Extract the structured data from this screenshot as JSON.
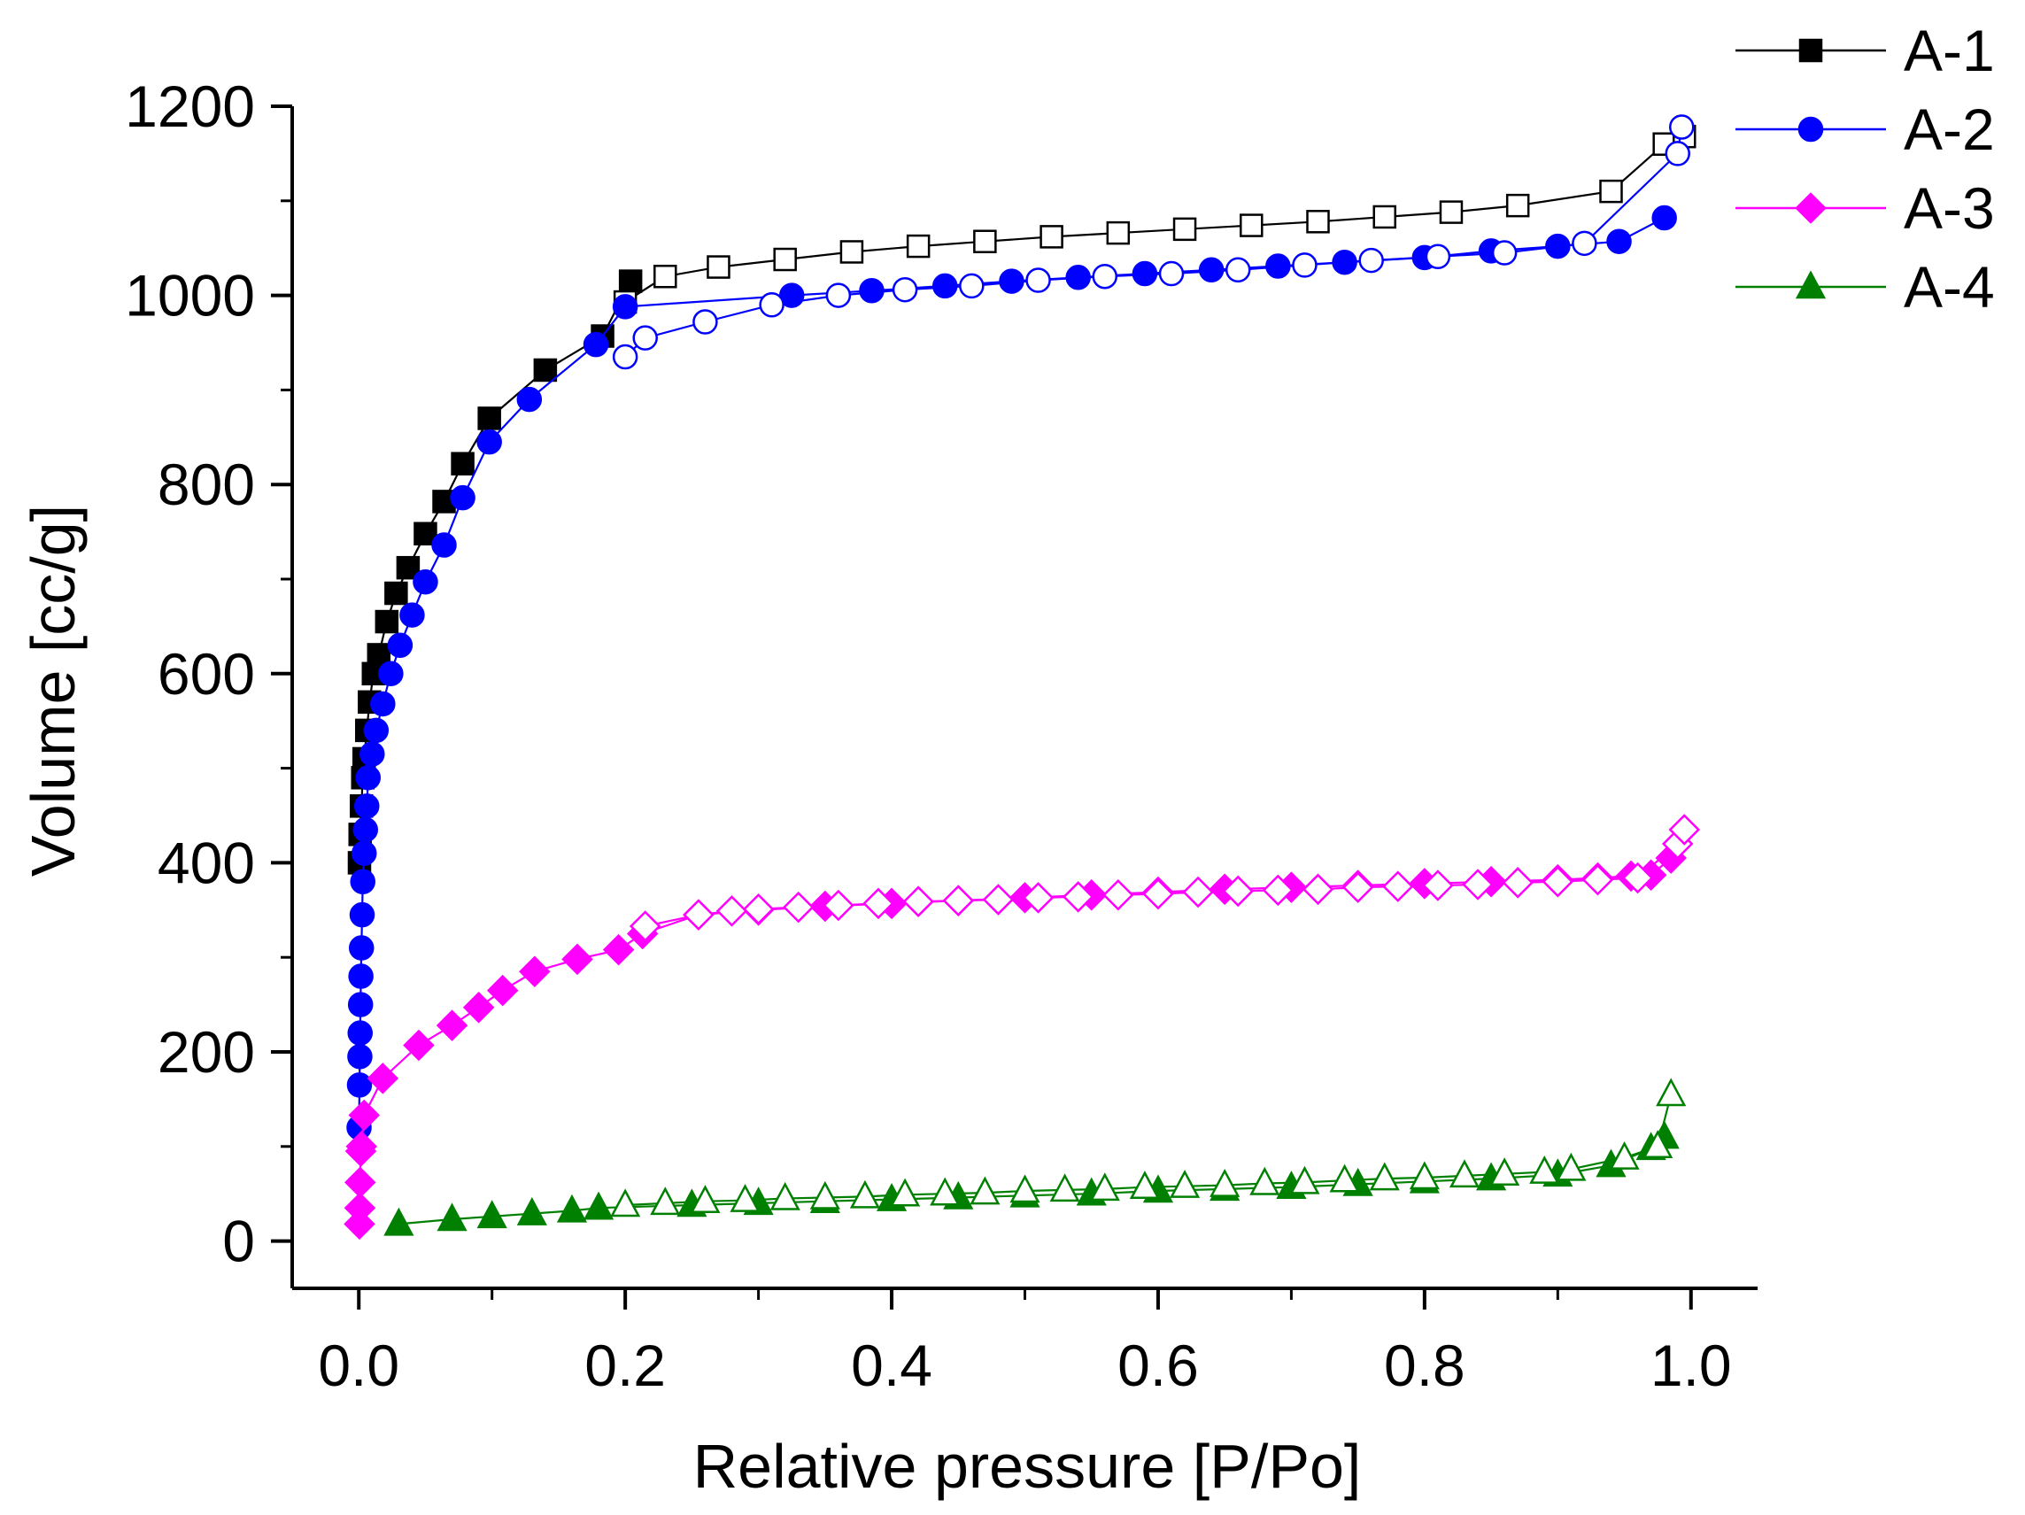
{
  "chart_data": {
    "type": "line",
    "title": "",
    "xlabel": "Relative pressure [P/Po]",
    "ylabel": "Volume [cc/g]",
    "xlim": [
      -0.05,
      1.05
    ],
    "ylim": [
      -50,
      1200
    ],
    "x_ticks": [
      0.0,
      0.2,
      0.4,
      0.6,
      0.8,
      1.0
    ],
    "x_tick_labels": [
      "0.0",
      "0.2",
      "0.4",
      "0.6",
      "0.8",
      "1.0"
    ],
    "y_ticks": [
      0,
      200,
      400,
      600,
      800,
      1000,
      1200
    ],
    "y_tick_labels": [
      "0",
      "200",
      "400",
      "600",
      "800",
      "1000",
      "1200"
    ],
    "grid": false,
    "legend_position": "top-right, outside plot",
    "series": [
      {
        "name": "A-1",
        "color": "#000000",
        "marker": "square",
        "adsorption": {
          "x": [
            0.0005,
            0.001,
            0.002,
            0.003,
            0.004,
            0.006,
            0.008,
            0.011,
            0.015,
            0.021,
            0.028,
            0.037,
            0.05,
            0.064,
            0.078,
            0.098,
            0.14,
            0.183,
            0.204
          ],
          "y": [
            400,
            430,
            460,
            490,
            510,
            540,
            570,
            600,
            620,
            655,
            685,
            712,
            748,
            782,
            822,
            870,
            921,
            957,
            1015
          ]
        },
        "desorption": {
          "x": [
            0.2,
            0.23,
            0.27,
            0.32,
            0.37,
            0.42,
            0.47,
            0.52,
            0.57,
            0.62,
            0.67,
            0.72,
            0.77,
            0.82,
            0.87,
            0.94,
            0.98,
            0.995
          ],
          "y": [
            993,
            1020,
            1030,
            1038,
            1046,
            1052,
            1057,
            1062,
            1066,
            1070,
            1074,
            1078,
            1083,
            1088,
            1095,
            1110,
            1160,
            1168
          ]
        }
      },
      {
        "name": "A-2",
        "color": "#0000ff",
        "marker": "circle",
        "adsorption": {
          "x": [
            0.0002,
            0.0005,
            0.0008,
            0.001,
            0.0013,
            0.0016,
            0.002,
            0.0025,
            0.003,
            0.004,
            0.005,
            0.006,
            0.007,
            0.01,
            0.013,
            0.018,
            0.024,
            0.031,
            0.04,
            0.05,
            0.064,
            0.078,
            0.098,
            0.128,
            0.178,
            0.2,
            0.325,
            0.385,
            0.44,
            0.49,
            0.54,
            0.59,
            0.64,
            0.69,
            0.74,
            0.8,
            0.85,
            0.9,
            0.946,
            0.98
          ],
          "y": [
            120,
            165,
            195,
            220,
            250,
            280,
            310,
            345,
            380,
            410,
            435,
            460,
            490,
            515,
            540,
            568,
            600,
            630,
            662,
            697,
            736,
            786,
            845,
            890,
            948,
            988,
            1000,
            1005,
            1010,
            1015,
            1019,
            1023,
            1027,
            1031,
            1035,
            1040,
            1047,
            1052,
            1057,
            1082
          ]
        },
        "desorption": {
          "x": [
            0.2,
            0.215,
            0.26,
            0.31,
            0.36,
            0.41,
            0.46,
            0.51,
            0.56,
            0.61,
            0.66,
            0.71,
            0.76,
            0.81,
            0.86,
            0.92,
            0.99,
            0.993
          ],
          "y": [
            935,
            955,
            972,
            990,
            1000,
            1006,
            1010,
            1016,
            1020,
            1023,
            1027,
            1032,
            1037,
            1041,
            1045,
            1055,
            1150,
            1178
          ]
        }
      },
      {
        "name": "A-3",
        "color": "#ff00ff",
        "marker": "diamond",
        "adsorption": {
          "x": [
            0.0005,
            0.0008,
            0.001,
            0.0015,
            0.002,
            0.004,
            0.018,
            0.045,
            0.07,
            0.09,
            0.108,
            0.132,
            0.164,
            0.195,
            0.213,
            0.255,
            0.3,
            0.35,
            0.4,
            0.45,
            0.5,
            0.55,
            0.6,
            0.65,
            0.7,
            0.75,
            0.8,
            0.85,
            0.9,
            0.93,
            0.955,
            0.97,
            0.985
          ],
          "y": [
            18,
            35,
            62,
            95,
            100,
            133,
            172,
            207,
            228,
            247,
            265,
            285,
            298,
            308,
            325,
            345,
            350,
            354,
            357,
            360,
            363,
            366,
            369,
            372,
            374,
            376,
            378,
            380,
            382,
            384,
            386,
            387,
            405
          ]
        },
        "desorption": {
          "x": [
            0.215,
            0.255,
            0.28,
            0.3,
            0.33,
            0.36,
            0.39,
            0.42,
            0.45,
            0.48,
            0.51,
            0.54,
            0.57,
            0.6,
            0.63,
            0.66,
            0.69,
            0.72,
            0.75,
            0.78,
            0.81,
            0.84,
            0.87,
            0.9,
            0.93,
            0.96,
            0.99,
            0.995
          ],
          "y": [
            333,
            345,
            349,
            351,
            353,
            355,
            357,
            359,
            360,
            361,
            363,
            364,
            366,
            367,
            369,
            370,
            371,
            372,
            374,
            375,
            376,
            377,
            379,
            380,
            382,
            384,
            420,
            435
          ]
        }
      },
      {
        "name": "A-4",
        "color": "#008000",
        "marker": "triangle",
        "adsorption": {
          "x": [
            0.03,
            0.07,
            0.1,
            0.13,
            0.16,
            0.18,
            0.25,
            0.3,
            0.35,
            0.4,
            0.45,
            0.5,
            0.55,
            0.6,
            0.65,
            0.7,
            0.75,
            0.8,
            0.85,
            0.9,
            0.94,
            0.97,
            0.98
          ],
          "y": [
            18,
            23,
            26,
            29,
            32,
            35,
            38,
            40,
            42,
            44,
            46,
            48,
            50,
            53,
            55,
            57,
            60,
            63,
            66,
            70,
            80,
            98,
            110
          ]
        },
        "desorption": {
          "x": [
            0.2,
            0.23,
            0.26,
            0.29,
            0.32,
            0.35,
            0.38,
            0.41,
            0.44,
            0.47,
            0.5,
            0.53,
            0.56,
            0.59,
            0.62,
            0.65,
            0.68,
            0.71,
            0.74,
            0.77,
            0.8,
            0.83,
            0.86,
            0.89,
            0.91,
            0.95,
            0.975,
            0.985
          ],
          "y": [
            38,
            40,
            42,
            43,
            45,
            46,
            47,
            49,
            50,
            51,
            53,
            54,
            55,
            57,
            58,
            59,
            61,
            62,
            64,
            66,
            67,
            69,
            71,
            73,
            76,
            88,
            100,
            155
          ]
        }
      }
    ]
  }
}
